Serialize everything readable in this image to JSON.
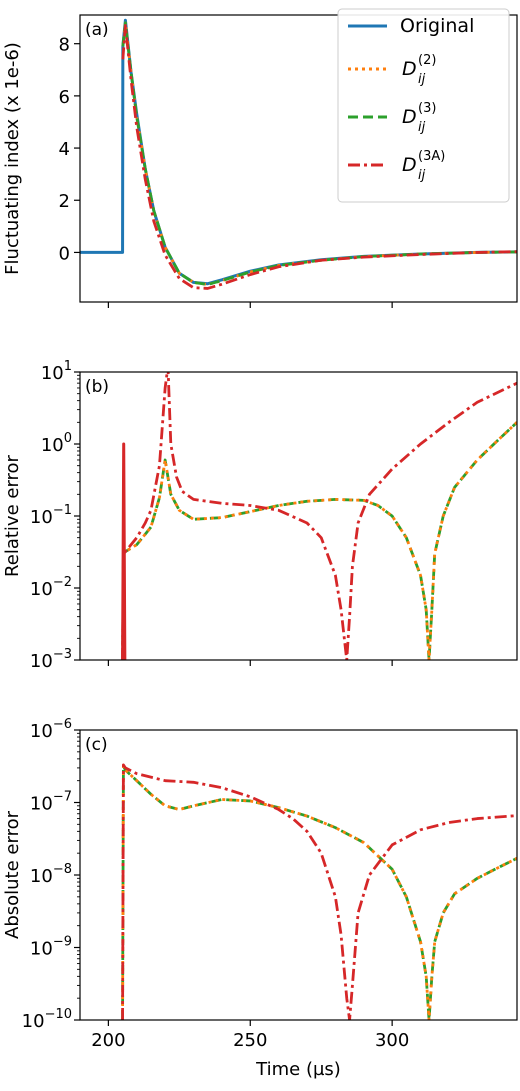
{
  "chart_data": [
    {
      "panel": "(a)",
      "type": "line",
      "ylabel": "Fluctuating index (x 1e-6)",
      "xlabel": "",
      "xlim": [
        190,
        344
      ],
      "ylim": [
        -1.9,
        9.1
      ],
      "yticks": [
        0,
        2,
        4,
        6,
        8
      ],
      "xticks": [
        200,
        250,
        300
      ],
      "yscale": "linear",
      "legend": {
        "placement": "top-right",
        "entries": [
          {
            "label": "Original",
            "color": "#1f77b4",
            "style": "solid"
          },
          {
            "base": "D",
            "sub": "ij",
            "sup": "(2)",
            "color": "#ff7f0e",
            "style": "dotted"
          },
          {
            "base": "D",
            "sub": "ij",
            "sup": "(3)",
            "color": "#2ca02c",
            "style": "dashed"
          },
          {
            "base": "D",
            "sub": "ij",
            "sup": "(3A)",
            "color": "#d62728",
            "style": "dashdot"
          }
        ]
      },
      "series": [
        {
          "name": "Original",
          "color": "#1f77b4",
          "x": [
            190,
            205,
            205.1,
            206,
            208,
            210,
            213,
            216,
            220,
            225,
            230,
            235,
            240,
            250,
            260,
            275,
            290,
            310,
            330,
            344
          ],
          "y": [
            0,
            0,
            7.9,
            8.9,
            6.9,
            5.3,
            3.2,
            1.6,
            0.2,
            -0.8,
            -1.15,
            -1.2,
            -1.05,
            -0.72,
            -0.48,
            -0.28,
            -0.15,
            -0.06,
            0,
            0.02
          ]
        },
        {
          "name": "D_ij^(2)",
          "color": "#ff7f0e",
          "x": [
            205.1,
            206,
            208,
            210,
            213,
            216,
            220,
            225,
            230,
            235,
            240,
            250,
            260,
            275,
            290,
            310,
            330,
            344
          ],
          "y": [
            7.9,
            8.8,
            6.9,
            5.2,
            3.2,
            1.6,
            0.2,
            -0.8,
            -1.15,
            -1.23,
            -1.08,
            -0.75,
            -0.5,
            -0.3,
            -0.16,
            -0.06,
            0,
            0.02
          ]
        },
        {
          "name": "D_ij^(3)",
          "color": "#2ca02c",
          "x": [
            205.1,
            206,
            208,
            210,
            213,
            216,
            220,
            225,
            230,
            235,
            240,
            250,
            260,
            275,
            290,
            310,
            330,
            344
          ],
          "y": [
            7.9,
            8.8,
            6.9,
            5.2,
            3.2,
            1.6,
            0.2,
            -0.8,
            -1.15,
            -1.23,
            -1.08,
            -0.75,
            -0.5,
            -0.3,
            -0.16,
            -0.06,
            0,
            0.02
          ]
        },
        {
          "name": "D_ij^(3A)",
          "color": "#d62728",
          "x": [
            205.1,
            206,
            208,
            210,
            213,
            216,
            220,
            225,
            230,
            235,
            240,
            250,
            260,
            275,
            290,
            310,
            330,
            344
          ],
          "y": [
            7.4,
            8.7,
            6.6,
            4.8,
            2.8,
            1.2,
            -0.1,
            -1.0,
            -1.35,
            -1.38,
            -1.22,
            -0.85,
            -0.55,
            -0.3,
            -0.18,
            -0.08,
            0,
            0.03
          ]
        }
      ]
    },
    {
      "panel": "(b)",
      "type": "line",
      "ylabel": "Relative error",
      "xlabel": "",
      "xlim": [
        190,
        344
      ],
      "yscale": "log",
      "ylim_exp": [
        -3,
        1
      ],
      "ytick_exps": [
        -3,
        -2,
        -1,
        0,
        1
      ],
      "xticks": [
        200,
        250,
        300
      ],
      "series": [
        {
          "name": "D_ij^(3)",
          "color": "#2ca02c",
          "x": [
            205,
            205.3,
            206,
            210,
            215,
            218,
            220,
            222,
            225,
            230,
            240,
            250,
            260,
            270,
            280,
            290,
            295,
            300,
            305,
            310,
            312,
            313,
            314,
            315,
            318,
            322,
            330,
            338,
            344
          ],
          "y": [
            0.001,
            0.03,
            0.032,
            0.04,
            0.07,
            0.18,
            0.6,
            0.2,
            0.12,
            0.09,
            0.095,
            0.115,
            0.14,
            0.16,
            0.17,
            0.165,
            0.14,
            0.1,
            0.05,
            0.015,
            0.005,
            0.001,
            0.005,
            0.03,
            0.1,
            0.25,
            0.6,
            1.2,
            2.0
          ]
        },
        {
          "name": "D_ij^(2)",
          "color": "#ff7f0e",
          "x": [
            205,
            205.3,
            206,
            210,
            215,
            218,
            220,
            222,
            225,
            230,
            240,
            250,
            260,
            270,
            280,
            290,
            295,
            300,
            305,
            310,
            312,
            313,
            314,
            315,
            318,
            322,
            330,
            338,
            344
          ],
          "y": [
            0.001,
            0.03,
            0.032,
            0.04,
            0.07,
            0.18,
            0.6,
            0.2,
            0.12,
            0.09,
            0.095,
            0.115,
            0.14,
            0.16,
            0.17,
            0.165,
            0.14,
            0.1,
            0.05,
            0.015,
            0.005,
            0.001,
            0.005,
            0.03,
            0.1,
            0.25,
            0.6,
            1.2,
            2.0
          ]
        },
        {
          "name": "D_ij^(3A)",
          "color": "#d62728",
          "x": [
            205,
            205.3,
            206,
            208,
            210,
            213,
            215,
            218,
            220,
            221,
            222,
            224,
            226,
            230,
            240,
            250,
            260,
            270,
            275,
            280,
            282,
            284,
            285,
            286,
            288,
            292,
            300,
            310,
            320,
            330,
            344
          ],
          "y": [
            0.001,
            0.03,
            0.032,
            0.04,
            0.05,
            0.08,
            0.12,
            0.5,
            6.0,
            12.0,
            1.0,
            0.35,
            0.22,
            0.17,
            0.15,
            0.14,
            0.12,
            0.08,
            0.05,
            0.015,
            0.005,
            0.001,
            0.004,
            0.02,
            0.08,
            0.2,
            0.45,
            1.0,
            2.0,
            3.8,
            7.0
          ]
        },
        {
          "name": "spike",
          "color": "#d62728",
          "x": [
            205,
            205.4,
            205.8
          ],
          "y": [
            0.001,
            1.0,
            0.001
          ]
        }
      ]
    },
    {
      "panel": "(c)",
      "type": "line",
      "ylabel": "Absolute error",
      "xlabel": "Time (µs)",
      "xlim": [
        190,
        344
      ],
      "yscale": "log",
      "ylim_exp": [
        -10,
        -6
      ],
      "ytick_exps": [
        -10,
        -9,
        -8,
        -7,
        -6
      ],
      "xticks": [
        200,
        250,
        300
      ],
      "series": [
        {
          "name": "D_ij^(3)",
          "color": "#2ca02c",
          "x": [
            205,
            205.3,
            206,
            210,
            215,
            220,
            225,
            230,
            240,
            250,
            260,
            270,
            280,
            290,
            300,
            305,
            310,
            312,
            313,
            314,
            315,
            318,
            322,
            330,
            338,
            344
          ],
          "y": [
            1e-10,
            3.2e-07,
            2.8e-07,
            2e-07,
            1.3e-07,
            9e-08,
            8e-08,
            9e-08,
            1.1e-07,
            1.05e-07,
            8.5e-08,
            6.5e-08,
            4.5e-08,
            2.8e-08,
            1.2e-08,
            5e-09,
            1.2e-09,
            4e-10,
            1e-10,
            4e-10,
            1.2e-09,
            3e-09,
            5.5e-09,
            9e-09,
            1.3e-08,
            1.7e-08
          ]
        },
        {
          "name": "D_ij^(2)",
          "color": "#ff7f0e",
          "x": [
            205,
            205.3,
            206,
            210,
            215,
            220,
            225,
            230,
            240,
            250,
            260,
            270,
            280,
            290,
            300,
            305,
            310,
            312,
            313,
            314,
            315,
            318,
            322,
            330,
            338,
            344
          ],
          "y": [
            1e-10,
            3.2e-07,
            2.8e-07,
            2e-07,
            1.3e-07,
            9e-08,
            8e-08,
            9e-08,
            1.1e-07,
            1.05e-07,
            8.5e-08,
            6.5e-08,
            4.5e-08,
            2.8e-08,
            1.2e-08,
            5e-09,
            1.2e-09,
            4e-10,
            1e-10,
            4e-10,
            1.2e-09,
            3e-09,
            5.5e-09,
            9e-09,
            1.3e-08,
            1.7e-08
          ]
        },
        {
          "name": "D_ij^(3A)",
          "color": "#d62728",
          "x": [
            205,
            205.3,
            206,
            210,
            220,
            230,
            240,
            250,
            260,
            265,
            270,
            275,
            280,
            282,
            284,
            285,
            286,
            288,
            292,
            300,
            310,
            320,
            330,
            344
          ],
          "y": [
            1e-10,
            3.3e-07,
            3e-07,
            2.5e-07,
            2e-07,
            1.9e-07,
            1.6e-07,
            1.2e-07,
            8e-08,
            6e-08,
            4e-08,
            2e-08,
            5e-09,
            1.5e-09,
            2e-10,
            1e-10,
            3e-10,
            3e-09,
            1e-08,
            2.6e-08,
            4.2e-08,
            5.3e-08,
            6e-08,
            6.6e-08
          ]
        }
      ]
    }
  ]
}
